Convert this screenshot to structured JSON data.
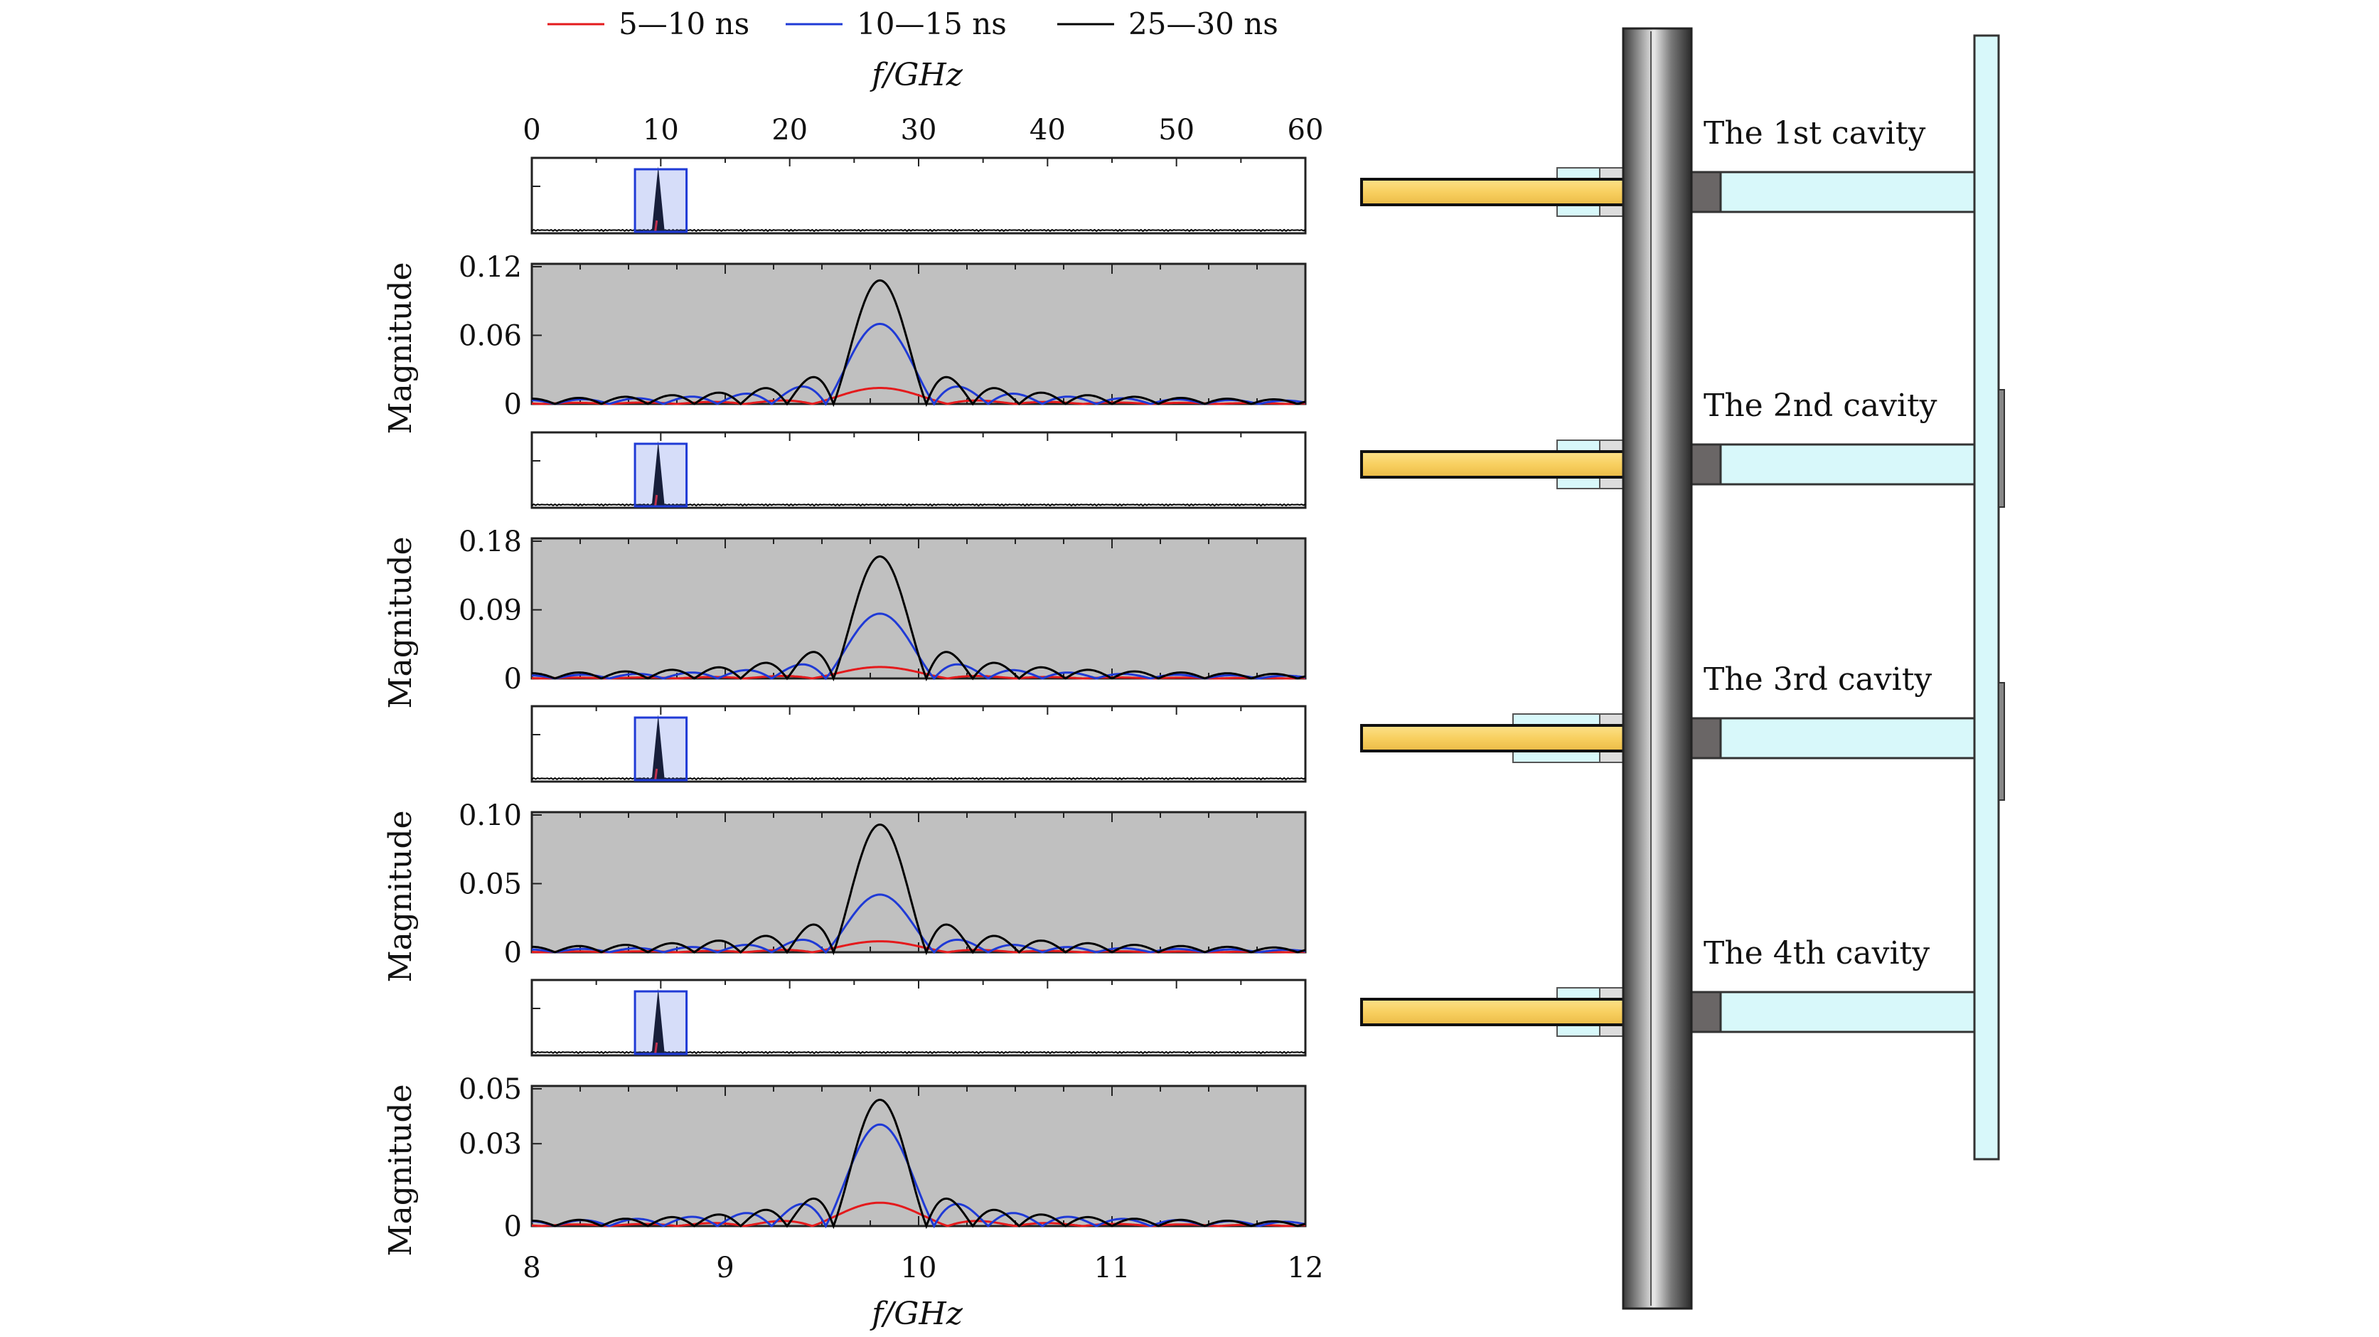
{
  "legend": [
    {
      "label": "5—10 ns",
      "color": "#e41a1c"
    },
    {
      "label": "10—15 ns",
      "color": "#1f3ad6"
    },
    {
      "label": "25—30 ns",
      "color": "#000000"
    }
  ],
  "top_axis": {
    "title": "f/GHz",
    "ticks": [
      "0",
      "10",
      "20",
      "30",
      "40",
      "50",
      "60"
    ],
    "range": [
      0,
      60
    ]
  },
  "bottom_axis": {
    "title": "f/GHz",
    "ticks": [
      "8",
      "9",
      "10",
      "11",
      "12"
    ],
    "range": [
      8,
      12
    ]
  },
  "colors": {
    "red": "#e41a1c",
    "blue": "#1f3ad6",
    "black": "#000000",
    "panel_gray": "#c0c0c0",
    "highlight_box": "#1f3ad6",
    "arrow_fill": "#f8d060",
    "cavity_fill": "#d8f8fa"
  },
  "cavity_labels": [
    "The 1st cavity",
    "The 2nd cavity",
    "The 3rd cavity",
    "The 4th cavity"
  ],
  "chart_data": [
    {
      "type": "line",
      "title": "",
      "xlabel": "f/GHz",
      "ylabel": "Magnitude",
      "xlim": [
        8,
        12
      ],
      "ylim": [
        0,
        0.12
      ],
      "yticks": [
        "0",
        "0.06",
        "0.12"
      ],
      "peak_frequency_ghz": 9.8,
      "series": [
        {
          "name": "5—10 ns",
          "peak": 0.014
        },
        {
          "name": "10—15 ns",
          "peak": 0.07
        },
        {
          "name": "25—30 ns",
          "peak": 0.108
        }
      ]
    },
    {
      "type": "line",
      "title": "",
      "xlabel": "f/GHz",
      "ylabel": "Magnitude",
      "xlim": [
        8,
        12
      ],
      "ylim": [
        0,
        0.18
      ],
      "yticks": [
        "0",
        "0.09",
        "0.18"
      ],
      "peak_frequency_ghz": 9.8,
      "series": [
        {
          "name": "5—10 ns",
          "peak": 0.015
        },
        {
          "name": "10—15 ns",
          "peak": 0.085
        },
        {
          "name": "25—30 ns",
          "peak": 0.16
        }
      ]
    },
    {
      "type": "line",
      "title": "",
      "xlabel": "f/GHz",
      "ylabel": "Magnitude",
      "xlim": [
        8,
        12
      ],
      "ylim": [
        0,
        0.1
      ],
      "yticks": [
        "0",
        "0.05",
        "0.10"
      ],
      "peak_frequency_ghz": 9.8,
      "series": [
        {
          "name": "5—10 ns",
          "peak": 0.008
        },
        {
          "name": "10—15 ns",
          "peak": 0.042
        },
        {
          "name": "25—30 ns",
          "peak": 0.093
        }
      ]
    },
    {
      "type": "line",
      "title": "",
      "xlabel": "f/GHz",
      "ylabel": "Magnitude",
      "xlim": [
        8,
        12
      ],
      "ylim": [
        0,
        0.05
      ],
      "yticks": [
        "0",
        "0.03",
        "0.05"
      ],
      "peak_frequency_ghz": 9.8,
      "series": [
        {
          "name": "5—10 ns",
          "peak": 0.0085
        },
        {
          "name": "10—15 ns",
          "peak": 0.037
        },
        {
          "name": "25—30 ns",
          "peak": 0.046
        }
      ]
    }
  ],
  "overview_spectra": {
    "xlim": [
      0,
      60
    ],
    "peak_frequency_ghz": 9.8,
    "highlight_range_ghz": [
      8,
      12
    ]
  }
}
